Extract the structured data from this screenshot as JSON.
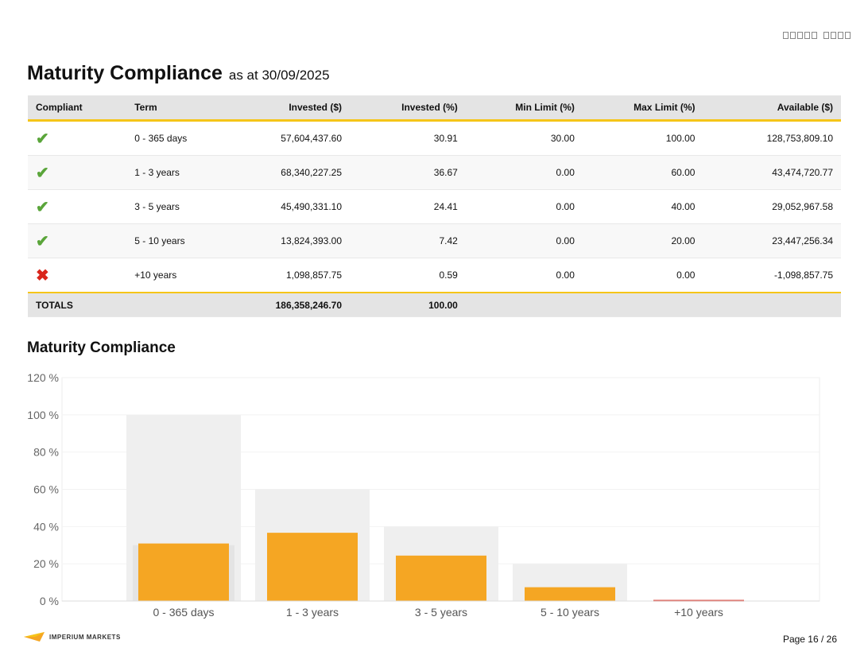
{
  "header": {
    "title": "Maturity Compliance",
    "subtitle": "as at 30/09/2025"
  },
  "table": {
    "columns": [
      "Compliant",
      "Term",
      "Invested ($)",
      "Invested (%)",
      "Min Limit (%)",
      "Max Limit (%)",
      "Available ($)"
    ],
    "rows": [
      {
        "compliant": true,
        "icon": "check-icon",
        "term": "0 - 365 days",
        "invested": "57,604,437.60",
        "invested_pct": "30.91",
        "min": "30.00",
        "max": "100.00",
        "available": "128,753,809.10"
      },
      {
        "compliant": true,
        "icon": "check-icon",
        "term": "1 - 3 years",
        "invested": "68,340,227.25",
        "invested_pct": "36.67",
        "min": "0.00",
        "max": "60.00",
        "available": "43,474,720.77"
      },
      {
        "compliant": true,
        "icon": "check-icon",
        "term": "3 - 5 years",
        "invested": "45,490,331.10",
        "invested_pct": "24.41",
        "min": "0.00",
        "max": "40.00",
        "available": "29,052,967.58"
      },
      {
        "compliant": true,
        "icon": "check-icon",
        "term": "5 - 10 years",
        "invested": "13,824,393.00",
        "invested_pct": "7.42",
        "min": "0.00",
        "max": "20.00",
        "available": "23,447,256.34"
      },
      {
        "compliant": false,
        "icon": "cross-icon",
        "term": "+10 years",
        "invested": "1,098,857.75",
        "invested_pct": "0.59",
        "min": "0.00",
        "max": "0.00",
        "available": "-1,098,857.75"
      }
    ],
    "totals": {
      "label": "TOTALS",
      "invested": "186,358,246.70",
      "invested_pct": "100.00"
    }
  },
  "chart_title": "Maturity Compliance",
  "chart_data": {
    "type": "bar",
    "categories": [
      "0 - 365 days",
      "1 - 3 years",
      "3 - 5 years",
      "5 - 10 years",
      "+10 years"
    ],
    "series": [
      {
        "values": [
          30.91,
          36.67,
          24.41,
          7.42,
          0.59
        ],
        "role": "invested"
      },
      {
        "values": [
          30,
          0,
          0,
          0,
          0
        ],
        "role": "min_limit"
      },
      {
        "values": [
          100,
          60,
          40,
          20,
          0
        ],
        "role": "max_limit"
      }
    ],
    "yticks": [
      "0 %",
      "20 %",
      "40 %",
      "60 %",
      "80 %",
      "100 %",
      "120 %"
    ],
    "ylim": [
      0,
      120
    ],
    "grid": true,
    "colors": {
      "invested": "#f5a623",
      "noncompliant": "#d9261c",
      "max_limit": "#efefef",
      "min_limit": "#e4e4e4"
    }
  },
  "footer": {
    "brand": "IMPERIUM MARKETS",
    "page": "Page 16 / 26"
  }
}
